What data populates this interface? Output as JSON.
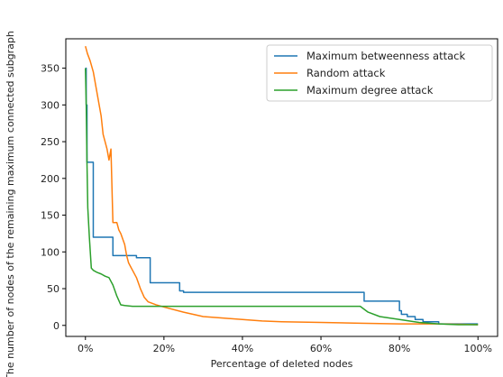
{
  "chart_data": {
    "type": "line",
    "title": "",
    "xlabel": "Percentage of deleted nodes",
    "ylabel": "The number of nodes of the remaining maximum connected subgraph",
    "xlim": [
      -0.05,
      1.05
    ],
    "ylim": [
      -15,
      390
    ],
    "x_ticks": [
      0,
      0.2,
      0.4,
      0.6,
      0.8,
      1.0
    ],
    "x_tick_labels": [
      "0%",
      "20%",
      "40%",
      "60%",
      "80%",
      "100%"
    ],
    "y_ticks": [
      0,
      50,
      100,
      150,
      200,
      250,
      300,
      350
    ],
    "y_tick_labels": [
      "0",
      "50",
      "100",
      "150",
      "200",
      "250",
      "300",
      "350"
    ],
    "grid": false,
    "legend_position": "top-right",
    "colors": {
      "betweenness": "#1f77b4",
      "random": "#ff7f0e",
      "degree": "#2ca02c"
    },
    "series": [
      {
        "name": "Maximum betweenness attack",
        "key": "betweenness",
        "step": true,
        "x": [
          0,
          0.002,
          0.004,
          0.008,
          0.02,
          0.025,
          0.07,
          0.09,
          0.13,
          0.16,
          0.165,
          0.24,
          0.25,
          0.7,
          0.71,
          0.8,
          0.805,
          0.82,
          0.84,
          0.86,
          0.9,
          1.0
        ],
        "y": [
          350,
          300,
          222,
          222,
          120,
          120,
          95,
          95,
          92,
          92,
          58,
          47,
          45,
          45,
          33,
          20,
          15,
          12,
          8,
          5,
          2,
          2
        ]
      },
      {
        "name": "Random attack",
        "key": "random",
        "step": false,
        "x": [
          0,
          0.005,
          0.012,
          0.02,
          0.025,
          0.03,
          0.035,
          0.04,
          0.045,
          0.05,
          0.055,
          0.06,
          0.065,
          0.07,
          0.073,
          0.076,
          0.08,
          0.085,
          0.09,
          0.1,
          0.105,
          0.11,
          0.115,
          0.12,
          0.13,
          0.14,
          0.15,
          0.16,
          0.18,
          0.2,
          0.25,
          0.3,
          0.35,
          0.4,
          0.45,
          0.5,
          0.6,
          0.7,
          0.8,
          0.9,
          1.0
        ],
        "y": [
          380,
          370,
          360,
          345,
          330,
          315,
          300,
          285,
          260,
          250,
          240,
          225,
          240,
          140,
          140,
          140,
          140,
          130,
          125,
          110,
          95,
          85,
          80,
          75,
          65,
          50,
          38,
          32,
          28,
          25,
          18,
          12,
          10,
          8,
          6,
          5,
          4,
          3,
          2,
          2,
          1
        ]
      },
      {
        "name": "Maximum degree attack",
        "key": "degree",
        "step": false,
        "x": [
          0,
          0.002,
          0.004,
          0.006,
          0.01,
          0.015,
          0.02,
          0.03,
          0.04,
          0.05,
          0.06,
          0.07,
          0.08,
          0.09,
          0.1,
          0.12,
          0.15,
          0.2,
          0.3,
          0.4,
          0.5,
          0.6,
          0.7,
          0.72,
          0.75,
          0.8,
          0.85,
          0.9,
          0.95,
          1.0
        ],
        "y": [
          350,
          300,
          220,
          160,
          120,
          78,
          75,
          72,
          70,
          67,
          65,
          55,
          40,
          28,
          27,
          26,
          26,
          26,
          26,
          26,
          26,
          26,
          26,
          18,
          12,
          8,
          4,
          2,
          1,
          1
        ]
      }
    ]
  }
}
